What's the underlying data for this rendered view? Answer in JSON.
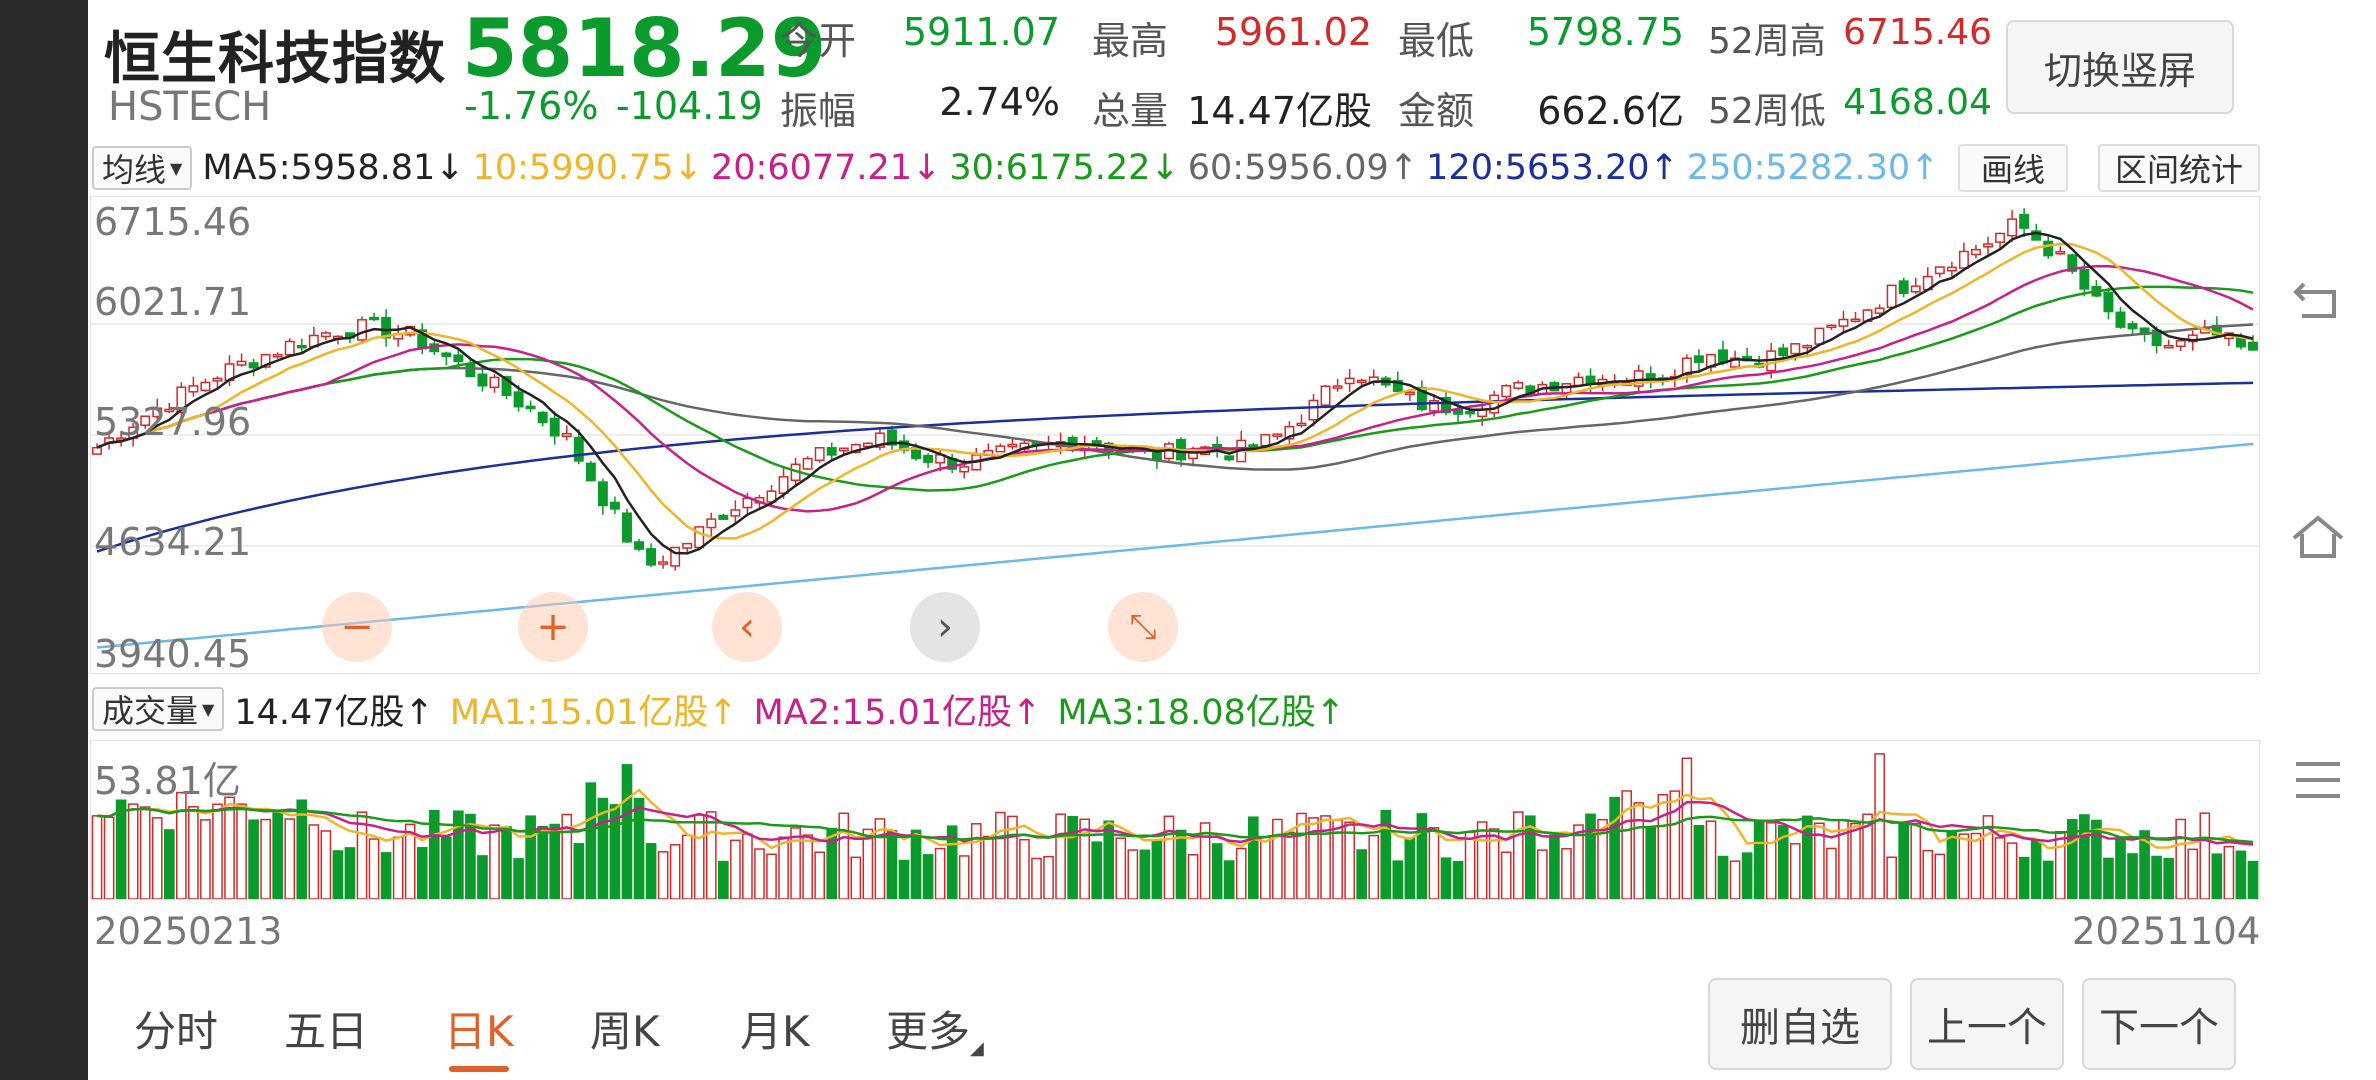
{
  "header": {
    "name": "恒生科技指数",
    "code": "HSTECH",
    "price": "5818.29",
    "change_pct": "-1.76%",
    "change": "-104.19",
    "switch_button": "切换竖屏"
  },
  "stats": {
    "open_label": "今开",
    "open": "5911.07",
    "high_label": "最高",
    "high": "5961.02",
    "low_label": "最低",
    "low": "5798.75",
    "w52_high_label": "52周高",
    "w52_high": "6715.46",
    "amp_label": "振幅",
    "amp": "2.74%",
    "vol_label": "总量",
    "vol": "14.47亿股",
    "amt_label": "金额",
    "amt": "662.6亿",
    "w52_low_label": "52周低",
    "w52_low": "4168.04"
  },
  "ma": {
    "dropdown": "均线",
    "items": [
      {
        "text": "MA5:5958.81↓",
        "color": "#222222"
      },
      {
        "text": "10:5990.75↓",
        "color": "#f0b429"
      },
      {
        "text": "20:6077.21↓",
        "color": "#c8208a"
      },
      {
        "text": "30:6175.22↓",
        "color": "#1a9a1a"
      },
      {
        "text": "60:5956.09↑",
        "color": "#666666"
      },
      {
        "text": "120:5653.20↑",
        "color": "#1a2f9a"
      },
      {
        "text": "250:5282.30↑",
        "color": "#6cb8e8"
      }
    ],
    "draw_button": "画线",
    "range_button": "区间统计"
  },
  "price_axis": [
    "6715.46",
    "6021.71",
    "5327.96",
    "4634.21",
    "3940.45"
  ],
  "controls": {
    "zoom_out": "−",
    "zoom_in": "+",
    "prev": "‹",
    "next": "›",
    "shrink": "⤡"
  },
  "volume": {
    "dropdown": "成交量",
    "value": "14.47亿股↑",
    "ma1": "MA1:15.01亿股↑",
    "ma2": "MA2:15.01亿股↑",
    "ma3": "MA3:18.08亿股↑",
    "max_axis": "53.81亿"
  },
  "dates": {
    "start": "20250213",
    "end": "20251104"
  },
  "tabs": [
    "分时",
    "五日",
    "日K",
    "周K",
    "月K",
    "更多"
  ],
  "active_tab": "日K",
  "bottom_buttons": {
    "remove_watch": "删自选",
    "prev": "上一个",
    "next": "下一个"
  },
  "colors": {
    "up": "#d22a2a",
    "down": "#0a9b2c",
    "accent": "#e0622a"
  },
  "chart_data": {
    "type": "candlestick",
    "y_range": [
      3940.45,
      6715.46
    ],
    "x_range": [
      "20250213",
      "20251104"
    ],
    "close_path_approx": [
      5250,
      5420,
      5560,
      5700,
      5800,
      5900,
      5980,
      6000,
      5950,
      5800,
      5650,
      5500,
      5300,
      4900,
      4500,
      4650,
      4850,
      5000,
      5150,
      5250,
      5300,
      5200,
      5150,
      5200,
      5250,
      5300,
      5250,
      5200,
      5250,
      5220,
      5300,
      5500,
      5750,
      5600,
      5500,
      5520,
      5600,
      5650,
      5700,
      5680,
      5720,
      5850,
      5800,
      5830,
      5950,
      6100,
      6250,
      6400,
      6500,
      6650,
      6450,
      6150,
      5920,
      5880,
      5960,
      5820
    ]
  }
}
